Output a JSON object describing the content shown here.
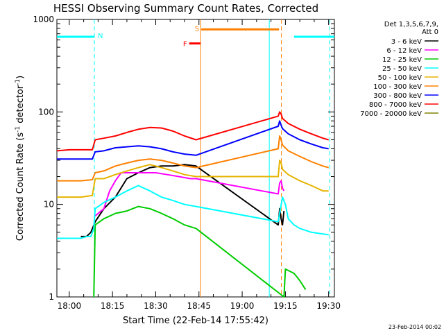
{
  "chart_data": {
    "type": "line",
    "title": "HESSI Observing Summary Count Rates, Corrected",
    "xlabel": "Start Time (22-Feb-14 17:55:42)",
    "ylabel": "Corrected Count Rate (s⁻¹ detector⁻¹)",
    "ylabel_main": "Corrected Count Rate (s",
    "ylabel_exp1": "-1",
    "ylabel_mid": " detector",
    "ylabel_exp2": "-1",
    "ylabel_end": ")",
    "footer": "23-Feb-2014 00:02",
    "x_scale": "time (minutes of day)",
    "xlim": [
      1075.7,
      1172
    ],
    "xtick_values": [
      1080,
      1095,
      1110,
      1125,
      1140,
      1155,
      1170
    ],
    "xtick_labels": [
      "18:00",
      "18:15",
      "18:30",
      "18:45",
      "19:00",
      "19:15",
      "19:30"
    ],
    "y_scale": "log",
    "ylim": [
      1,
      1000
    ],
    "ytick_values": [
      1,
      10,
      100,
      1000
    ],
    "ytick_labels": [
      "1",
      "10",
      "100",
      "1000"
    ],
    "legend": {
      "placement": "top-right, outside plot",
      "header": [
        "Det 1,3,5,6,7,9,",
        "Att 0"
      ]
    },
    "series": [
      {
        "name": "3 - 6 keV",
        "color": "#000000",
        "points": [
          [
            1084,
            4.5
          ],
          [
            1086,
            4.5
          ],
          [
            1087.5,
            5
          ],
          [
            1089,
            6.5
          ],
          [
            1092,
            9
          ],
          [
            1096,
            12
          ],
          [
            1100,
            19
          ],
          [
            1104,
            22
          ],
          [
            1108,
            25
          ],
          [
            1112,
            26
          ],
          [
            1116,
            26
          ],
          [
            1120,
            27
          ],
          [
            1124,
            26
          ],
          [
            1152.5,
            6
          ],
          [
            1153,
            9
          ],
          [
            1153.5,
            7
          ],
          [
            1154,
            6
          ],
          [
            1154.5,
            8.5
          ]
        ]
      },
      {
        "name": "6 - 12 keV",
        "color": "#ff00ff",
        "points": [
          [
            1089,
            7.5
          ],
          [
            1090,
            8
          ],
          [
            1092,
            9
          ],
          [
            1094,
            14
          ],
          [
            1096,
            18
          ],
          [
            1098,
            22
          ],
          [
            1102,
            22
          ],
          [
            1106,
            22
          ],
          [
            1110,
            22
          ],
          [
            1114,
            21
          ],
          [
            1118,
            20
          ],
          [
            1122,
            19
          ],
          [
            1124,
            19
          ],
          [
            1152.5,
            13
          ],
          [
            1153,
            17
          ],
          [
            1153.5,
            18
          ],
          [
            1154,
            15
          ],
          [
            1154.5,
            14
          ]
        ]
      },
      {
        "name": "12 - 25 keV",
        "color": "#00cc00",
        "points": [
          [
            1088.5,
            1
          ],
          [
            1089,
            6
          ],
          [
            1092,
            7
          ],
          [
            1096,
            8
          ],
          [
            1100,
            8.5
          ],
          [
            1104,
            9.5
          ],
          [
            1108,
            9
          ],
          [
            1112,
            8
          ],
          [
            1116,
            7
          ],
          [
            1120,
            6
          ],
          [
            1124,
            5.5
          ],
          [
            1154.5,
            1
          ],
          [
            1155,
            2
          ],
          [
            1158,
            1.8
          ],
          [
            1160,
            1.5
          ],
          [
            1162,
            1.2
          ]
        ]
      },
      {
        "name": "25 - 50 keV",
        "color": "#00ffff",
        "points": [
          [
            1075.7,
            4.3
          ],
          [
            1080,
            4.3
          ],
          [
            1084,
            4.3
          ],
          [
            1086,
            4.5
          ],
          [
            1087.5,
            4.5
          ],
          [
            1088.5,
            5.5
          ],
          [
            1089,
            9
          ],
          [
            1092,
            10.5
          ],
          [
            1096,
            12
          ],
          [
            1100,
            14
          ],
          [
            1104,
            16
          ],
          [
            1108,
            14
          ],
          [
            1112,
            12
          ],
          [
            1116,
            11
          ],
          [
            1120,
            10
          ],
          [
            1124,
            9.5
          ],
          [
            1152.5,
            6.5
          ],
          [
            1153,
            8
          ],
          [
            1154,
            12
          ],
          [
            1155,
            10
          ],
          [
            1156,
            7
          ],
          [
            1158,
            6
          ],
          [
            1160,
            5.5
          ],
          [
            1164,
            5
          ],
          [
            1168,
            4.8
          ],
          [
            1170,
            4.7
          ]
        ]
      },
      {
        "name": "50 - 100 keV",
        "color": "#e6b400",
        "points": [
          [
            1075.7,
            12
          ],
          [
            1080,
            12
          ],
          [
            1084,
            12
          ],
          [
            1088,
            12.5
          ],
          [
            1089,
            19
          ],
          [
            1092,
            19
          ],
          [
            1096,
            21
          ],
          [
            1100,
            23
          ],
          [
            1104,
            25
          ],
          [
            1108,
            27
          ],
          [
            1112,
            25
          ],
          [
            1116,
            23
          ],
          [
            1120,
            21
          ],
          [
            1124,
            20
          ],
          [
            1152.5,
            20
          ],
          [
            1153,
            30
          ],
          [
            1153.5,
            28
          ],
          [
            1154,
            24
          ],
          [
            1156,
            21
          ],
          [
            1160,
            18
          ],
          [
            1164,
            16
          ],
          [
            1168,
            14
          ],
          [
            1170,
            14
          ]
        ]
      },
      {
        "name": "100 - 300 keV",
        "color": "#ff8000",
        "points": [
          [
            1075.7,
            18
          ],
          [
            1080,
            18
          ],
          [
            1084,
            18
          ],
          [
            1088,
            18.5
          ],
          [
            1089,
            22
          ],
          [
            1092,
            23
          ],
          [
            1096,
            26
          ],
          [
            1100,
            28
          ],
          [
            1104,
            30
          ],
          [
            1108,
            31
          ],
          [
            1112,
            30
          ],
          [
            1116,
            28
          ],
          [
            1120,
            26
          ],
          [
            1124,
            25
          ],
          [
            1152.5,
            40
          ],
          [
            1153,
            55
          ],
          [
            1153.5,
            50
          ],
          [
            1154,
            44
          ],
          [
            1156,
            38
          ],
          [
            1160,
            33
          ],
          [
            1164,
            29
          ],
          [
            1168,
            26
          ],
          [
            1170,
            25
          ]
        ]
      },
      {
        "name": "300 - 800 keV",
        "color": "#0000ff",
        "points": [
          [
            1075.7,
            31
          ],
          [
            1080,
            31
          ],
          [
            1084,
            31
          ],
          [
            1088,
            31
          ],
          [
            1089,
            37
          ],
          [
            1092,
            38
          ],
          [
            1096,
            41
          ],
          [
            1100,
            42
          ],
          [
            1104,
            43
          ],
          [
            1108,
            42
          ],
          [
            1112,
            40
          ],
          [
            1116,
            37
          ],
          [
            1120,
            35
          ],
          [
            1124,
            34
          ],
          [
            1152.5,
            70
          ],
          [
            1153,
            80
          ],
          [
            1153.5,
            72
          ],
          [
            1154,
            66
          ],
          [
            1156,
            58
          ],
          [
            1160,
            50
          ],
          [
            1164,
            45
          ],
          [
            1168,
            41
          ],
          [
            1170,
            40
          ]
        ]
      },
      {
        "name": "800 - 7000 keV",
        "color": "#ff0000",
        "points": [
          [
            1075.7,
            38
          ],
          [
            1080,
            39
          ],
          [
            1084,
            39
          ],
          [
            1088,
            39
          ],
          [
            1089,
            50
          ],
          [
            1092,
            52
          ],
          [
            1096,
            55
          ],
          [
            1100,
            60
          ],
          [
            1104,
            65
          ],
          [
            1108,
            68
          ],
          [
            1112,
            67
          ],
          [
            1116,
            62
          ],
          [
            1120,
            55
          ],
          [
            1124,
            50
          ],
          [
            1152.5,
            90
          ],
          [
            1153,
            100
          ],
          [
            1153.5,
            95
          ],
          [
            1154,
            85
          ],
          [
            1156,
            75
          ],
          [
            1160,
            65
          ],
          [
            1164,
            58
          ],
          [
            1168,
            52
          ],
          [
            1170,
            50
          ]
        ]
      },
      {
        "name": "7000 - 20000 keV",
        "color": "#808000",
        "points": []
      }
    ],
    "flags": [
      {
        "label": "N",
        "color": "#00ffff",
        "x_range": [
          1075.7,
          1088.7
        ],
        "y": 650
      },
      {
        "label": "",
        "color": "#00ffff",
        "x_range": [
          1158,
          1172
        ],
        "y": 650
      },
      {
        "label": "S",
        "color": "#ff8000",
        "x_range": [
          1125.8,
          1152.8
        ],
        "y": 780
      },
      {
        "label": "F",
        "color": "#ff0000",
        "x_range": [
          1121.6,
          1125.5
        ],
        "y": 550
      }
    ],
    "vertical_lines": [
      {
        "x": 1088.7,
        "color": "#00ffff",
        "style": "dashed"
      },
      {
        "x": 1125.6,
        "color": "#ff8000",
        "style": "solid"
      },
      {
        "x": 1149.4,
        "color": "#00ffff",
        "style": "solid"
      },
      {
        "x": 1153.6,
        "color": "#ff8000",
        "style": "dashed"
      },
      {
        "x": 1170.4,
        "color": "#00ffff",
        "style": "dashed"
      }
    ]
  }
}
